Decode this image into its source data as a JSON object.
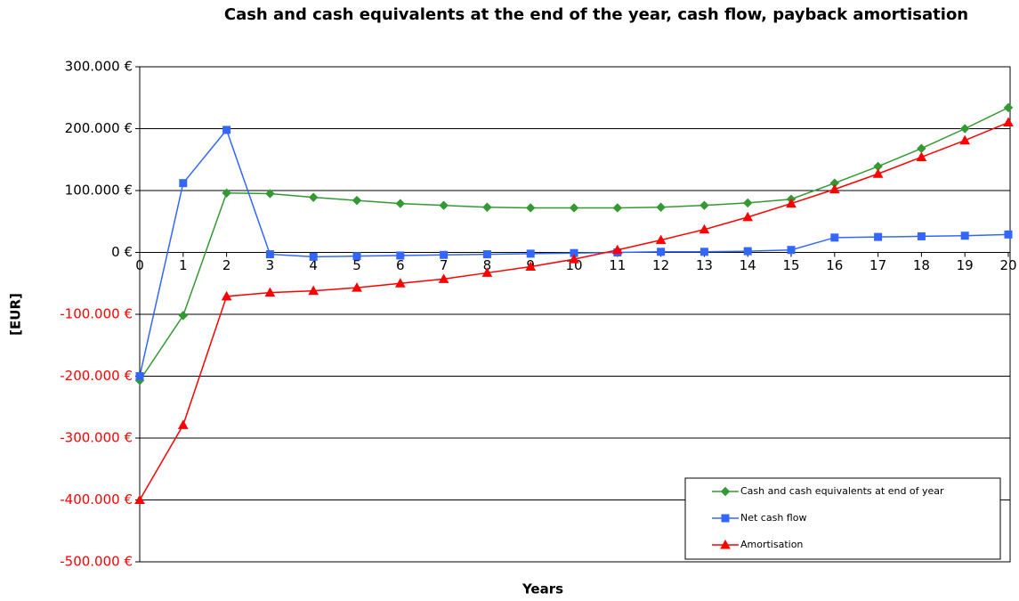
{
  "chart_data": {
    "type": "line",
    "title": "Cash and cash equivalents at the end of the year, cash flow, payback amortisation",
    "x_label": "Years",
    "y_label": "[EUR]",
    "x": [
      0,
      1,
      2,
      3,
      4,
      5,
      6,
      7,
      8,
      9,
      10,
      11,
      12,
      13,
      14,
      15,
      16,
      17,
      18,
      19,
      20
    ],
    "xlim": [
      0,
      20
    ],
    "xticks": [
      0,
      1,
      2,
      3,
      4,
      5,
      6,
      7,
      8,
      9,
      10,
      11,
      12,
      13,
      14,
      15,
      16,
      17,
      18,
      19,
      20
    ],
    "ylim": [
      -500000,
      300000
    ],
    "yticks": [
      {
        "value": -500000,
        "label": "-500.000 €"
      },
      {
        "value": -400000,
        "label": "-400.000 €"
      },
      {
        "value": -300000,
        "label": "-300.000 €"
      },
      {
        "value": -200000,
        "label": "-200.000 €"
      },
      {
        "value": -100000,
        "label": "-100.000 €"
      },
      {
        "value": 0,
        "label": "0 €"
      },
      {
        "value": 100000,
        "label": "100.000 €"
      },
      {
        "value": 200000,
        "label": "200.000 €"
      },
      {
        "value": 300000,
        "label": "300.000 €"
      }
    ],
    "grid": true,
    "legend": "lower right",
    "series": [
      {
        "name": "Cash and cash equivalents at end of year",
        "color": "#339933",
        "marker": "diamond",
        "values": [
          -207000,
          -102000,
          96000,
          95000,
          89000,
          84000,
          79000,
          76000,
          73000,
          72000,
          72000,
          72000,
          73000,
          76000,
          80000,
          86000,
          112000,
          139000,
          168000,
          200000,
          234000
        ]
      },
      {
        "name": "Net cash flow",
        "color": "#3366ff",
        "marker": "square",
        "values": [
          -200000,
          112000,
          198000,
          -3000,
          -7000,
          -6000,
          -5000,
          -4000,
          -3000,
          -2000,
          -1000,
          0,
          1000,
          1000,
          2000,
          4000,
          24000,
          25000,
          26000,
          27000,
          29000
        ]
      },
      {
        "name": "Amortisation",
        "color": "#ff0000",
        "marker": "triangle",
        "values": [
          -400000,
          -279000,
          -71000,
          -65000,
          -62000,
          -57000,
          -50000,
          -43000,
          -33000,
          -23000,
          -11000,
          4000,
          20000,
          37000,
          57000,
          79000,
          102000,
          127000,
          154000,
          181000,
          210000
        ]
      }
    ]
  }
}
